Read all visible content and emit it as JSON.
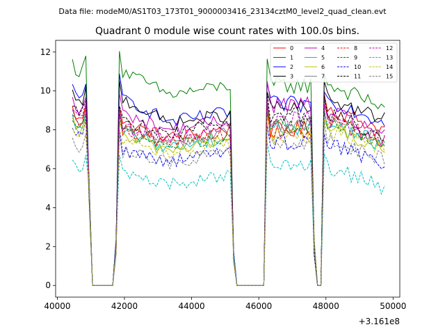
{
  "chart_data": {
    "type": "line",
    "suptitle": "Data file: modeM0/AS1T03_173T01_9000003416_23134cztM0_level2_quad_clean.evt",
    "title": "Quadrant 0 module wise count rates with 100.0s bins.",
    "xlabel": "",
    "ylabel": "",
    "x_offset_label": "+3.161e8",
    "xlim": [
      39950,
      50200
    ],
    "ylim": [
      -0.6,
      12.6
    ],
    "xticks": [
      40000,
      42000,
      44000,
      46000,
      48000,
      50000
    ],
    "xtick_labels": [
      "40000",
      "42000",
      "44000",
      "46000",
      "48000",
      "50000"
    ],
    "yticks": [
      0,
      2,
      4,
      6,
      8,
      10,
      12
    ],
    "ytick_labels": [
      "0",
      "2",
      "4",
      "6",
      "8",
      "10",
      "12"
    ],
    "legend_position": "top-right",
    "segments": [
      {
        "start": 40450,
        "end": 40850
      },
      {
        "start": 41850,
        "end": 45150
      },
      {
        "start": 46250,
        "end": 47550
      },
      {
        "start": 47950,
        "end": 49750
      }
    ],
    "gaps": [
      {
        "start": 41050,
        "end": 41750
      },
      {
        "start": 45250,
        "end": 46150
      },
      {
        "start": 47750,
        "end": 47850
      }
    ],
    "series": [
      {
        "name": "0",
        "color": "#ff0000",
        "dash": "solid",
        "levels": [
          9.1,
          9.3,
          7.6,
          8.3,
          8.0
        ]
      },
      {
        "name": "1",
        "color": "#008000",
        "dash": "solid",
        "levels": [
          11.5,
          12.0,
          9.8,
          10.6,
          9.2
        ]
      },
      {
        "name": "2",
        "color": "#0000ff",
        "dash": "solid",
        "levels": [
          10.2,
          10.7,
          8.4,
          9.6,
          8.4
        ]
      },
      {
        "name": "3",
        "color": "#000000",
        "dash": "solid",
        "levels": [
          9.9,
          10.6,
          8.3,
          9.4,
          8.5
        ]
      },
      {
        "name": "4",
        "color": "#bf00bf",
        "dash": "solid",
        "levels": [
          9.5,
          9.8,
          8.0,
          9.6,
          7.8
        ]
      },
      {
        "name": "5",
        "color": "#00bfbf",
        "dash": "solid",
        "levels": [
          8.6,
          8.8,
          7.1,
          8.4,
          7.2
        ]
      },
      {
        "name": "6",
        "color": "#bfbf00",
        "dash": "solid",
        "levels": [
          8.4,
          8.5,
          7.0,
          8.2,
          7.0
        ]
      },
      {
        "name": "7",
        "color": "#808080",
        "dash": "solid",
        "levels": [
          8.8,
          9.0,
          7.4,
          8.6,
          7.5
        ]
      },
      {
        "name": "8",
        "color": "#ff0000",
        "dash": "dashed",
        "levels": [
          9.0,
          9.0,
          7.3,
          8.3,
          7.4
        ]
      },
      {
        "name": "9",
        "color": "#008000",
        "dash": "dashed",
        "levels": [
          8.7,
          8.9,
          7.2,
          8.5,
          7.3
        ]
      },
      {
        "name": "10",
        "color": "#0000ff",
        "dash": "dashed",
        "levels": [
          8.3,
          7.9,
          6.4,
          7.7,
          6.2
        ]
      },
      {
        "name": "11",
        "color": "#000000",
        "dash": "dashed",
        "levels": [
          9.4,
          9.4,
          7.8,
          9.0,
          7.7
        ]
      },
      {
        "name": "12",
        "color": "#bf00bf",
        "dash": "dashed",
        "levels": [
          9.2,
          9.0,
          7.6,
          8.9,
          7.4
        ]
      },
      {
        "name": "13",
        "color": "#00bfbf",
        "dash": "dashed",
        "levels": [
          6.6,
          6.6,
          5.2,
          6.3,
          5.0
        ]
      },
      {
        "name": "14",
        "color": "#bfbf00",
        "dash": "dashed",
        "levels": [
          8.2,
          8.2,
          6.8,
          7.9,
          6.9
        ]
      },
      {
        "name": "15",
        "color": "#808080",
        "dash": "dashed",
        "levels": [
          7.7,
          7.8,
          6.3,
          7.6,
          6.4
        ]
      }
    ]
  }
}
